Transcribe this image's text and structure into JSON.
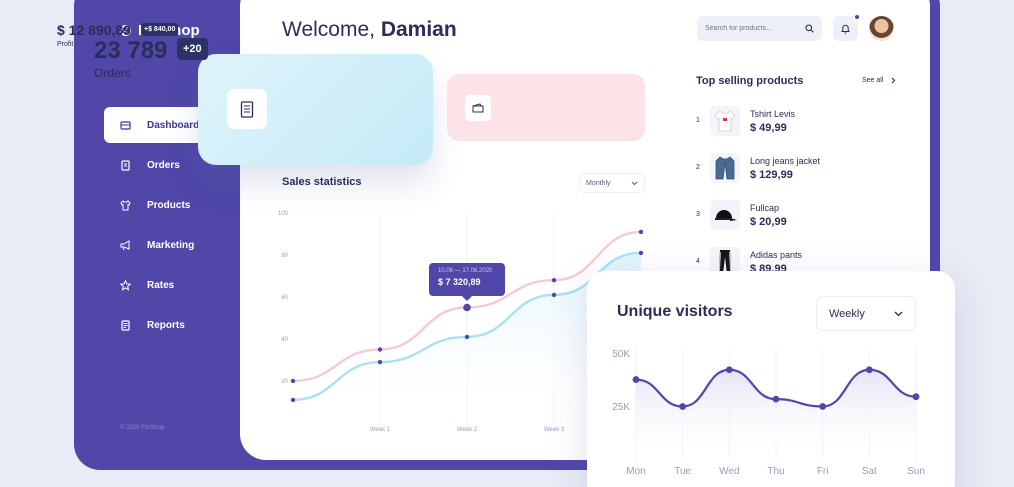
{
  "app": {
    "name": "ForShop",
    "copyright": "© 2020 ForShop"
  },
  "sidebar": {
    "items": [
      {
        "label": "Dashboard",
        "icon": "dashboard-icon",
        "active": true
      },
      {
        "label": "Orders",
        "icon": "orders-icon"
      },
      {
        "label": "Products",
        "icon": "tshirt-icon"
      },
      {
        "label": "Marketing",
        "icon": "megaphone-icon"
      },
      {
        "label": "Rates",
        "icon": "star-icon"
      },
      {
        "label": "Reports",
        "icon": "report-icon"
      }
    ]
  },
  "header": {
    "welcome": "Welcome,",
    "user": "Damian",
    "search_placeholder": "Search for products...",
    "notification_dot": true
  },
  "orders": {
    "value": "23 789",
    "badge": "+20",
    "label": "Orders"
  },
  "profit": {
    "value": "$ 12 890,89",
    "badge": "+$ 840,00",
    "label": "Profit"
  },
  "sales": {
    "title": "Sales statistics",
    "period": "Monthly",
    "tooltip_range": "10.06 — 17.06.2020",
    "tooltip_value": "$ 7 320,89"
  },
  "top_selling": {
    "title": "Top selling products",
    "see_all": "See all",
    "products": [
      {
        "rank": "1",
        "name": "Tshirt Levis",
        "price": "$ 49,99"
      },
      {
        "rank": "2",
        "name": "Long jeans jacket",
        "price": "$ 129,99"
      },
      {
        "rank": "3",
        "name": "Fullcap",
        "price": "$ 20,99"
      },
      {
        "rank": "4",
        "name": "Adidas pants",
        "price": "$ 89,99"
      }
    ]
  },
  "visitors": {
    "title": "Unique visitors",
    "period": "Weekly"
  },
  "colors": {
    "primary": "#5047a8",
    "pink": "#f7c9d6",
    "blue": "#a9e1f3",
    "dark": "#2b2d5a"
  },
  "chart_data": [
    {
      "type": "line",
      "x": [
        "",
        "Week 1",
        "Week 2",
        "Week 3",
        ""
      ],
      "yticks": [
        "100",
        "80",
        "60",
        "40",
        "20"
      ],
      "ylim": [
        0,
        100
      ],
      "series": [
        {
          "values": [
            20,
            35,
            55,
            68,
            91
          ]
        },
        {
          "values": [
            11,
            29,
            41,
            61,
            81
          ]
        }
      ]
    },
    {
      "type": "line",
      "categories": [
        "Mon",
        "Tue",
        "Wed",
        "Thu",
        "Fri",
        "Sat",
        "Sun"
      ],
      "yticks": [
        "50K",
        "25K"
      ],
      "series": [
        {
          "values": [
            41,
            30,
            45,
            33,
            30,
            45,
            34
          ]
        }
      ]
    }
  ]
}
